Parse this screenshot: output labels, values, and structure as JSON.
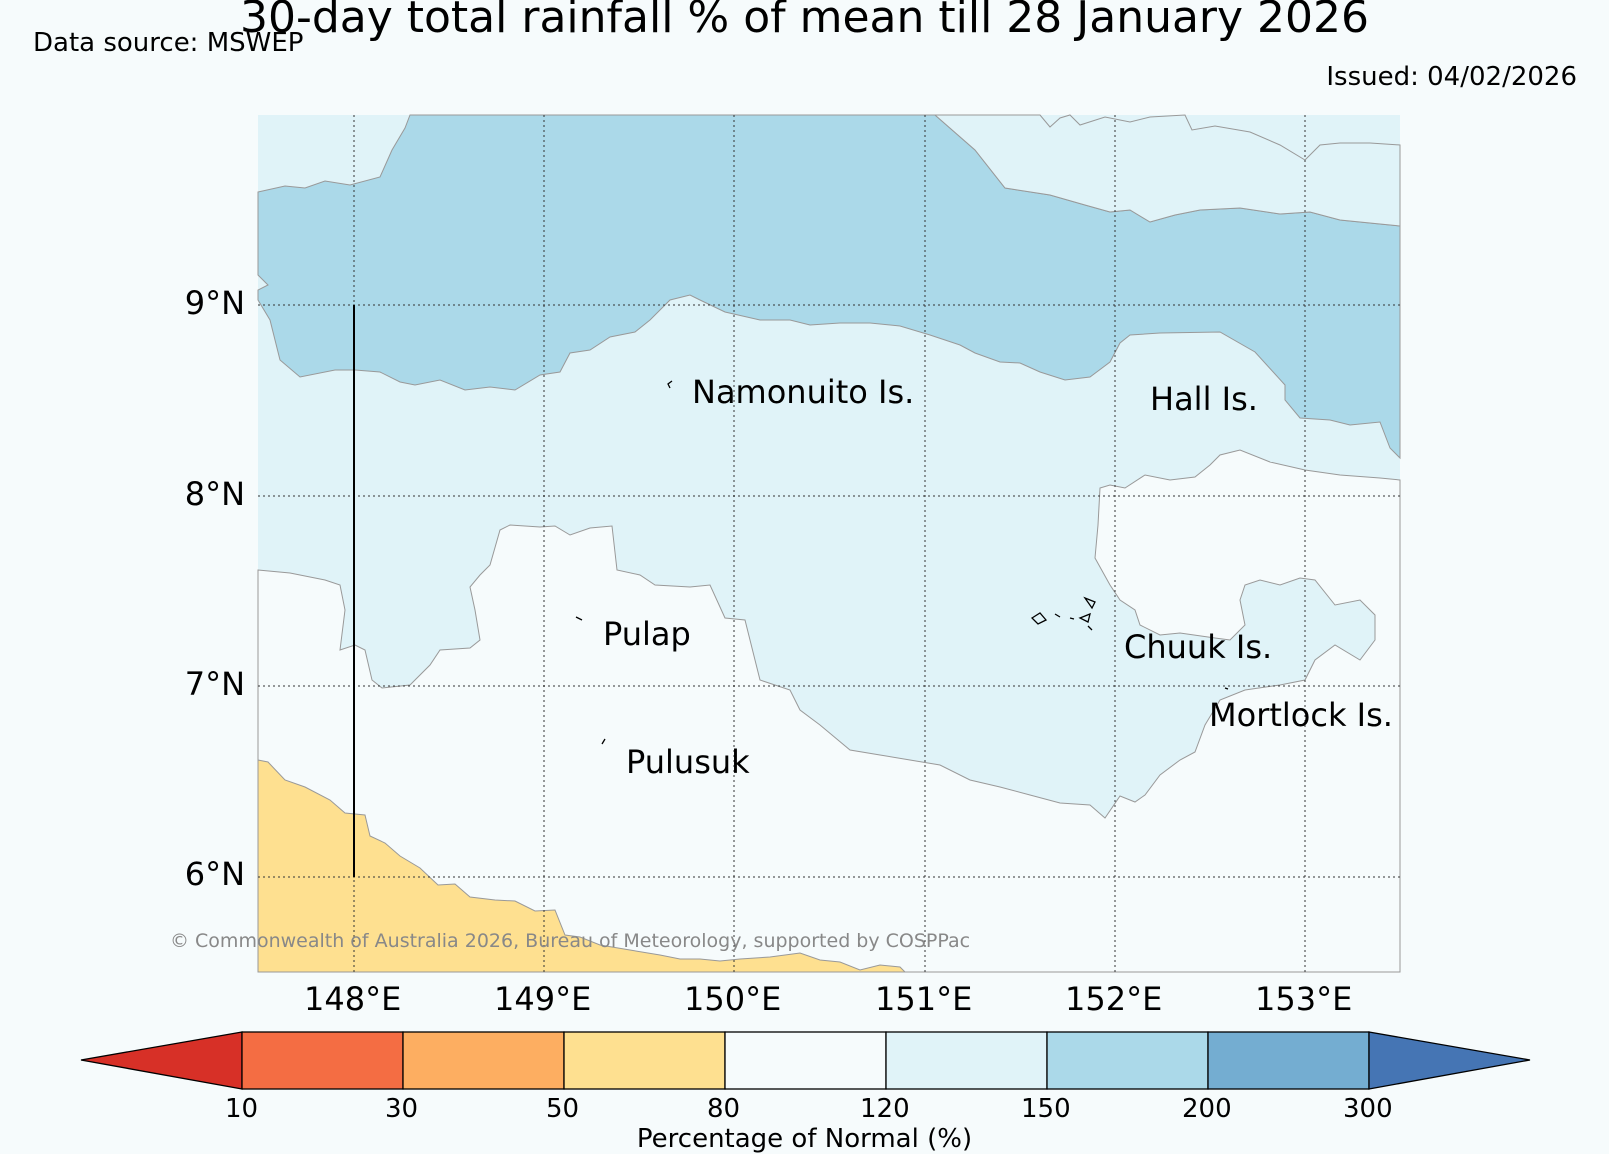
{
  "title": "30-day total rainfall % of mean till 28 January 2026",
  "data_source": "Data source: MSWEP",
  "issued": "Issued: 04/02/2026",
  "copyright": "© Commonwealth of Australia 2026, Bureau of Meteorology, supported by COSPPac",
  "axes": {
    "lat_labels": [
      "9°N",
      "8°N",
      "7°N",
      "6°N"
    ],
    "lon_labels": [
      "148°E",
      "149°E",
      "150°E",
      "151°E",
      "152°E",
      "153°E"
    ]
  },
  "places": [
    "Namonuito Is.",
    "Hall Is.",
    "Pulap",
    "Chuuk Is.",
    "Mortlock Is.",
    "Pulusuk"
  ],
  "colorbar": {
    "label": "Percentage of Normal (%)",
    "ticks": [
      "10",
      "30",
      "50",
      "80",
      "120",
      "150",
      "200",
      "300"
    ],
    "colors": [
      "#d73027",
      "#f46d43",
      "#fdae61",
      "#fee090",
      "#f6fbfc",
      "#e0f3f8",
      "#abd9e9",
      "#74add1",
      "#4575b4"
    ]
  }
}
